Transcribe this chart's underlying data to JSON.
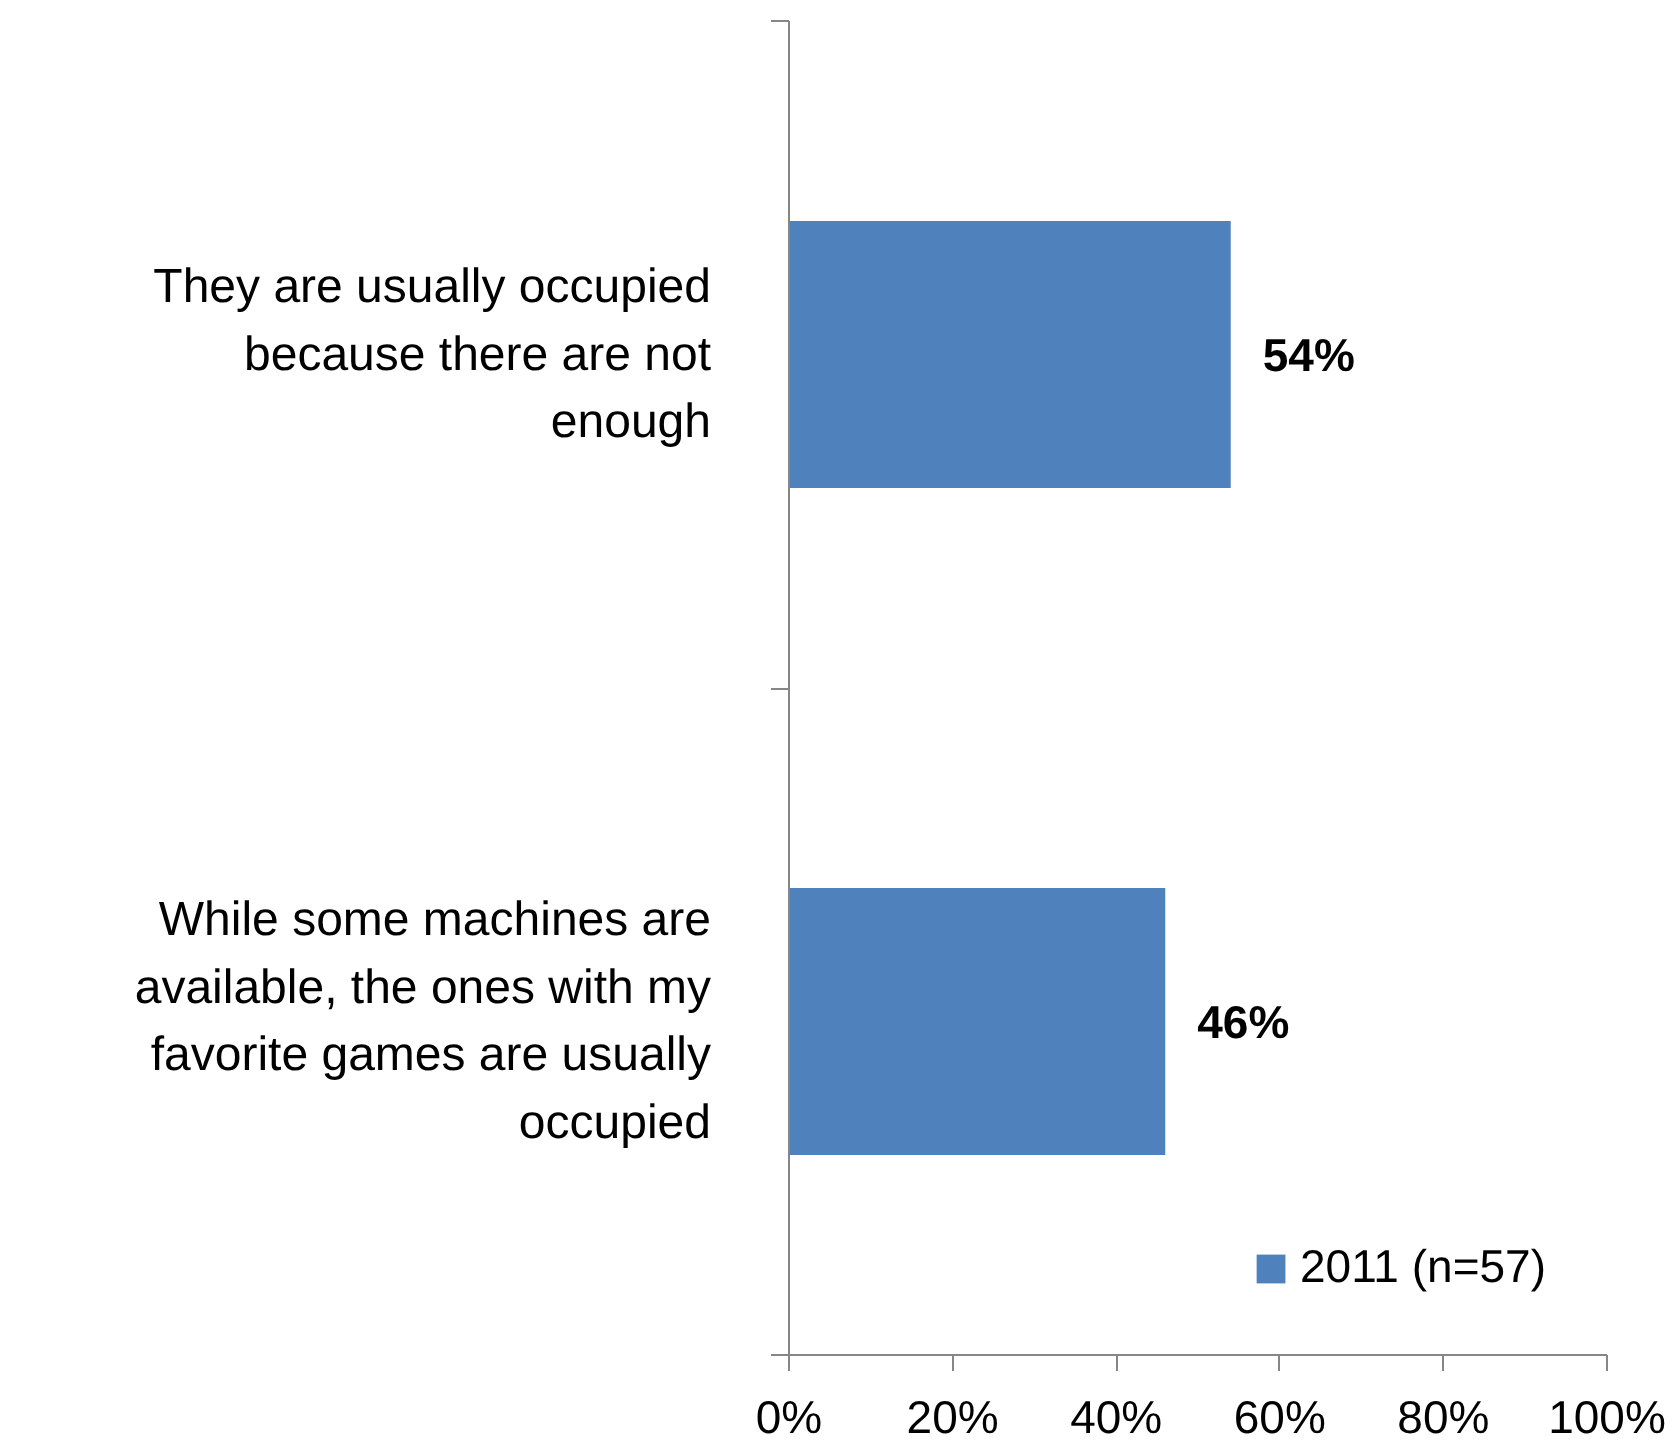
{
  "chart_data": {
    "type": "bar",
    "orientation": "horizontal",
    "categories": [
      "They are usually occupied because there are not enough",
      "While some machines are available, the ones with my favorite games are usually occupied"
    ],
    "series": [
      {
        "name": "2011 (n=57)",
        "color": "#4f81bd",
        "values": [
          54,
          46
        ],
        "value_labels": [
          "54%",
          "46%"
        ]
      }
    ],
    "xlim": [
      0,
      100
    ],
    "xticks": [
      {
        "value": 0,
        "label": "0%"
      },
      {
        "value": 20,
        "label": "20%"
      },
      {
        "value": 40,
        "label": "40%"
      },
      {
        "value": 60,
        "label": "60%"
      },
      {
        "value": 80,
        "label": "80%"
      },
      {
        "value": 100,
        "label": "100%"
      }
    ],
    "grid": false,
    "legend": "bottom right"
  }
}
